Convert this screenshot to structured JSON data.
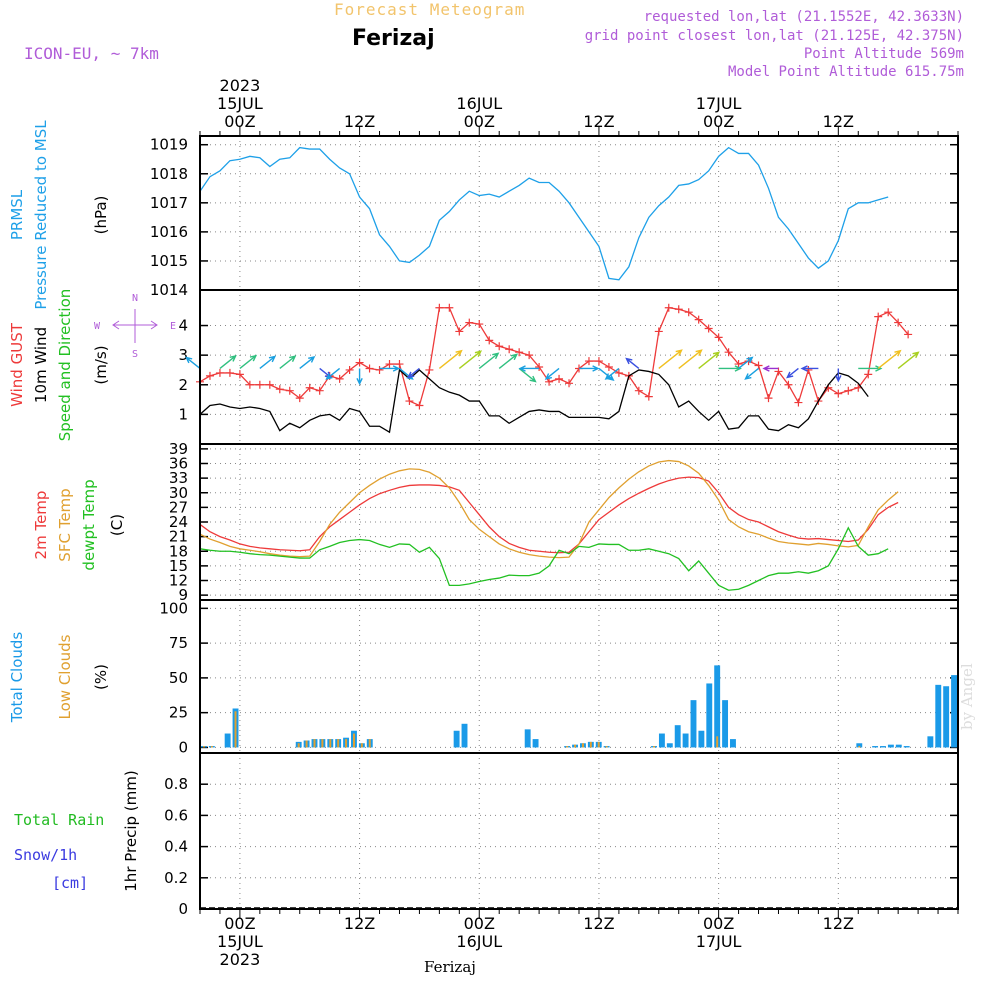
{
  "header": {
    "subtitle": "Forecast Meteogram",
    "location": "Ferizaj",
    "model": "ICON-EU, ~ 7km",
    "info_lines": [
      "requested lon,lat (21.1552E, 42.3633N)",
      "grid point closest lon,lat (21.125E, 42.375N)",
      "Point Altitude 569m",
      "Model Point Altitude 615.75m"
    ]
  },
  "footer": {
    "location": "Ferizaj",
    "watermark": "by Angel"
  },
  "colors": {
    "pressure": "#1ea0e8",
    "gust": "#ee3a3a",
    "wind10m": "#000000",
    "direction": "#22c022",
    "t2m": "#ee3a3a",
    "tsfc": "#e0a030",
    "dewpt": "#22c022",
    "total_clouds": "#1a9ae8",
    "low_clouds": "#e0a030",
    "rain": "#22bb22",
    "snow": "#3a3ae0",
    "axis_purple": "#b05cd8"
  },
  "time_axis": {
    "unit": "hours since 2023-07-14 20Z",
    "top_labels": [
      {
        "t": 4,
        "lines": [
          "2023",
          "15JUL",
          "00Z"
        ]
      },
      {
        "t": 16,
        "lines": [
          "12Z"
        ]
      },
      {
        "t": 28,
        "lines": [
          "16JUL",
          "00Z"
        ]
      },
      {
        "t": 40,
        "lines": [
          "12Z"
        ]
      },
      {
        "t": 52,
        "lines": [
          "17JUL",
          "00Z"
        ]
      },
      {
        "t": 64,
        "lines": [
          "12Z"
        ]
      }
    ],
    "bottom_labels": [
      {
        "t": 4,
        "lines": [
          "00Z",
          "15JUL",
          "2023"
        ]
      },
      {
        "t": 16,
        "lines": [
          "12Z"
        ]
      },
      {
        "t": 28,
        "lines": [
          "00Z",
          "16JUL"
        ]
      },
      {
        "t": 40,
        "lines": [
          "12Z"
        ]
      },
      {
        "t": 52,
        "lines": [
          "00Z",
          "17JUL"
        ]
      },
      {
        "t": 64,
        "lines": [
          "12Z"
        ]
      }
    ]
  },
  "chart_data": [
    {
      "id": "pressure",
      "type": "line",
      "title": "PRMSL Pressure Reduced to MSL",
      "label_lines": [
        {
          "text": "PRMSL",
          "color": "#1ea0e8"
        },
        {
          "text": "Pressure Reduced to MSL",
          "color": "#1ea0e8"
        }
      ],
      "ylabel": "(hPa)",
      "ylim": [
        1014,
        1019.3
      ],
      "yticks": [
        1014,
        1015,
        1016,
        1017,
        1018,
        1019
      ],
      "series": [
        {
          "name": "PRMSL",
          "color": "#1ea0e8",
          "values": [
            1017.4,
            1017.9,
            1018.1,
            1018.45,
            1018.5,
            1018.6,
            1018.55,
            1018.25,
            1018.5,
            1018.55,
            1018.9,
            1018.85,
            1018.85,
            1018.5,
            1018.2,
            1018.0,
            1017.2,
            1016.8,
            1015.9,
            1015.5,
            1015.0,
            1014.95,
            1015.2,
            1015.5,
            1016.4,
            1016.7,
            1017.1,
            1017.4,
            1017.25,
            1017.3,
            1017.2,
            1017.4,
            1017.6,
            1017.85,
            1017.7,
            1017.7,
            1017.4,
            1017.0,
            1016.5,
            1016.0,
            1015.5,
            1014.4,
            1014.35,
            1014.8,
            1015.8,
            1016.5,
            1016.9,
            1017.2,
            1017.6,
            1017.65,
            1017.8,
            1018.1,
            1018.6,
            1018.9,
            1018.7,
            1018.7,
            1018.3,
            1017.5,
            1016.5,
            1016.1,
            1015.6,
            1015.1,
            1014.75,
            1015.0,
            1015.7,
            1016.8,
            1017.0,
            1017.0,
            1017.1,
            1017.2
          ]
        }
      ]
    },
    {
      "id": "wind",
      "type": "line",
      "title": "Wind GUST / 10m Wind Speed and Direction",
      "label_lines": [
        {
          "text": "Wind GUST",
          "color": "#ee3a3a"
        },
        {
          "text": "10m Wind",
          "color": "#000000"
        },
        {
          "text": "Speed and Direction",
          "color": "#22c022"
        }
      ],
      "ylabel": "(m/s)",
      "ylim": [
        0,
        5.2
      ],
      "yticks": [
        1,
        2,
        3,
        4
      ],
      "compass": {
        "n": "N",
        "s": "S",
        "w": "W",
        "e": "E"
      },
      "series": [
        {
          "name": "Wind GUST",
          "color": "#ee3a3a",
          "marker": "+",
          "values": [
            2.1,
            2.3,
            2.4,
            2.4,
            2.35,
            2.0,
            2.0,
            2.0,
            1.85,
            1.8,
            1.55,
            1.9,
            1.8,
            2.3,
            2.2,
            2.5,
            2.75,
            2.55,
            2.5,
            2.7,
            2.7,
            1.45,
            1.3,
            2.5,
            4.6,
            4.6,
            3.8,
            4.1,
            4.05,
            3.5,
            3.3,
            3.2,
            3.1,
            3.0,
            2.6,
            2.1,
            2.2,
            2.05,
            2.55,
            2.8,
            2.8,
            2.6,
            2.4,
            2.3,
            1.8,
            1.6,
            3.8,
            4.6,
            4.55,
            4.45,
            4.2,
            3.9,
            3.6,
            3.1,
            2.7,
            2.8,
            2.65,
            1.55,
            2.45,
            2.0,
            1.4,
            2.5,
            1.45,
            1.9,
            1.7,
            1.8,
            1.9,
            2.35,
            4.3,
            4.45,
            4.1,
            3.7
          ]
        },
        {
          "name": "10m Wind",
          "color": "#000000",
          "values": [
            1.0,
            1.3,
            1.35,
            1.25,
            1.2,
            1.25,
            1.2,
            1.1,
            0.45,
            0.7,
            0.55,
            0.8,
            0.95,
            1.0,
            0.8,
            1.2,
            1.1,
            0.6,
            0.6,
            0.4,
            2.5,
            2.2,
            2.5,
            2.2,
            1.9,
            1.75,
            1.65,
            1.45,
            1.45,
            0.95,
            0.95,
            0.7,
            0.9,
            1.1,
            1.15,
            1.1,
            1.1,
            0.9,
            0.9,
            0.9,
            0.9,
            0.85,
            1.1,
            2.3,
            2.5,
            2.45,
            2.35,
            2.0,
            1.25,
            1.45,
            1.1,
            0.8,
            1.1,
            0.5,
            0.55,
            0.95,
            0.95,
            0.5,
            0.45,
            0.65,
            0.55,
            0.85,
            1.45,
            2.0,
            2.4,
            2.3,
            2.05,
            1.6
          ]
        }
      ],
      "arrows": [
        {
          "t": 0,
          "speed": 1.0,
          "dir": "NW"
        },
        {
          "t": 2,
          "speed": 1.3,
          "dir": "NE"
        },
        {
          "t": 4,
          "speed": 1.35,
          "dir": "NE"
        },
        {
          "t": 6,
          "speed": 1.2,
          "dir": "NE"
        },
        {
          "t": 8,
          "speed": 1.25,
          "dir": "NE"
        },
        {
          "t": 10,
          "speed": 1.1,
          "dir": "NE"
        },
        {
          "t": 12,
          "speed": 0.6,
          "dir": "SE"
        },
        {
          "t": 14,
          "speed": 0.9,
          "dir": "SW"
        },
        {
          "t": 16,
          "speed": 1.0,
          "dir": "S"
        },
        {
          "t": 18,
          "speed": 1.0,
          "dir": "E"
        },
        {
          "t": 20,
          "speed": 0.9,
          "dir": "SE"
        },
        {
          "t": 22,
          "speed": 0.6,
          "dir": "SW"
        },
        {
          "t": 24,
          "speed": 2.3,
          "dir": "NE"
        },
        {
          "t": 26,
          "speed": 2.2,
          "dir": "NE"
        },
        {
          "t": 28,
          "speed": 1.8,
          "dir": "NE"
        },
        {
          "t": 30,
          "speed": 1.6,
          "dir": "NE"
        },
        {
          "t": 32,
          "speed": 1.4,
          "dir": "SE"
        },
        {
          "t": 34,
          "speed": 1.0,
          "dir": "W"
        },
        {
          "t": 36,
          "speed": 0.9,
          "dir": "SW"
        },
        {
          "t": 38,
          "speed": 1.0,
          "dir": "E"
        },
        {
          "t": 40,
          "speed": 1.1,
          "dir": "SE"
        },
        {
          "t": 42,
          "speed": 0.9,
          "dir": "SW"
        },
        {
          "t": 44,
          "speed": 0.8,
          "dir": "NW"
        },
        {
          "t": 46,
          "speed": 2.4,
          "dir": "NE"
        },
        {
          "t": 48,
          "speed": 2.4,
          "dir": "NE"
        },
        {
          "t": 50,
          "speed": 2.0,
          "dir": "NE"
        },
        {
          "t": 52,
          "speed": 1.3,
          "dir": "E"
        },
        {
          "t": 54,
          "speed": 1.0,
          "dir": "NE"
        },
        {
          "t": 56,
          "speed": 0.9,
          "dir": "SW"
        },
        {
          "t": 58,
          "speed": 0.5,
          "dir": "W"
        },
        {
          "t": 60,
          "speed": 0.6,
          "dir": "SW"
        },
        {
          "t": 62,
          "speed": 0.7,
          "dir": "W"
        },
        {
          "t": 64,
          "speed": 0.6,
          "dir": "S"
        },
        {
          "t": 66,
          "speed": 1.4,
          "dir": "E"
        },
        {
          "t": 68,
          "speed": 2.3,
          "dir": "NE"
        },
        {
          "t": 70,
          "speed": 2.0,
          "dir": "NE"
        }
      ]
    },
    {
      "id": "temperature",
      "type": "line",
      "title": "2m Temp / SFC Temp / dewpt Temp",
      "label_lines": [
        {
          "text": "2m Temp",
          "color": "#ee3a3a"
        },
        {
          "text": "SFC Temp",
          "color": "#e0a030"
        },
        {
          "text": "dewpt Temp",
          "color": "#22c022"
        }
      ],
      "ylabel": "(C)",
      "ylim": [
        8,
        40
      ],
      "yticks": [
        9,
        12,
        15,
        18,
        21,
        24,
        27,
        30,
        33,
        36,
        39
      ],
      "series": [
        {
          "name": "2m Temp",
          "color": "#ee3a3a",
          "values": [
            23.5,
            22,
            21,
            20.3,
            19.5,
            19,
            18.7,
            18.5,
            18.3,
            18.2,
            18.1,
            18.3,
            21,
            23,
            24.5,
            26,
            27.5,
            28.8,
            29.8,
            30.5,
            31.1,
            31.5,
            31.6,
            31.6,
            31.5,
            31.2,
            30.5,
            28,
            25.5,
            23,
            21,
            19.6,
            18.8,
            18.2,
            18,
            17.8,
            17.7,
            17.8,
            19.5,
            22,
            24.5,
            26,
            27.5,
            28.8,
            29.9,
            30.9,
            31.8,
            32.5,
            33,
            33.2,
            33.1,
            32.4,
            30,
            27,
            25.5,
            24.5,
            24,
            23,
            22,
            21.3,
            20.7,
            20.5,
            20.6,
            20.4,
            20.2,
            20,
            20.3,
            22.5,
            25.5,
            27,
            28
          ]
        },
        {
          "name": "SFC Temp",
          "color": "#e0a030",
          "values": [
            21.5,
            20.5,
            19.8,
            19,
            18.5,
            18.2,
            17.9,
            17.5,
            17.2,
            17,
            16.9,
            17,
            20,
            23.5,
            26,
            28,
            30,
            31.5,
            32.8,
            33.8,
            34.5,
            34.9,
            34.8,
            34.2,
            33,
            31,
            28,
            24.5,
            22.5,
            21,
            19.5,
            18.5,
            17.8,
            17.3,
            17,
            16.8,
            16.7,
            16.8,
            19.5,
            24,
            26.5,
            29,
            31,
            32.8,
            34.3,
            35.5,
            36.3,
            36.6,
            36.4,
            35.5,
            34,
            31.5,
            28.5,
            24.5,
            23,
            22,
            21.5,
            20.7,
            20,
            19.7,
            19.5,
            19.3,
            19.6,
            19.4,
            19.1,
            18.9,
            19.2,
            23,
            26.5,
            28.5,
            30.2
          ]
        },
        {
          "name": "dewpt Temp",
          "color": "#22c022",
          "values": [
            18.5,
            18.2,
            18,
            18,
            17.8,
            17.5,
            17.3,
            17.2,
            17,
            16.8,
            16.6,
            16.6,
            18.3,
            19,
            19.8,
            20.2,
            20.4,
            20.2,
            19.4,
            18.8,
            19.5,
            19.4,
            17.8,
            18.8,
            16.5,
            11,
            11,
            11.3,
            11.8,
            12.2,
            12.5,
            13.1,
            13,
            13,
            13.5,
            15,
            18.2,
            17.5,
            19,
            18.8,
            19.5,
            19.4,
            19.4,
            18.2,
            18.2,
            18.5,
            18,
            17.5,
            16.5,
            14,
            16,
            13.5,
            11,
            10,
            10.2,
            11,
            12,
            13,
            13.5,
            13.5,
            13.8,
            13.5,
            14,
            15,
            18.5,
            22.8,
            19,
            17.2,
            17.5,
            18.5
          ]
        }
      ]
    },
    {
      "id": "clouds",
      "type": "bar",
      "title": "Total Clouds / Low Clouds",
      "label_lines": [
        {
          "text": "Total Clouds",
          "color": "#1a9ae8"
        },
        {
          "text": "Low Clouds",
          "color": "#e0a030"
        }
      ],
      "ylabel": "(%)",
      "ylim": [
        -4,
        106
      ],
      "yticks": [
        0,
        25,
        50,
        75,
        100
      ],
      "series": [
        {
          "name": "Total Clouds",
          "color": "#1a9ae8",
          "values": [
            1,
            1,
            0,
            10,
            28,
            0,
            0,
            0,
            0,
            0,
            0,
            0,
            4,
            5,
            6,
            6,
            6,
            6,
            7,
            12,
            3,
            6,
            0,
            0,
            0,
            0,
            0,
            0,
            0,
            0,
            0,
            0,
            12,
            17,
            0,
            0,
            0,
            0,
            0,
            0,
            0,
            13,
            6,
            0,
            0,
            0,
            1,
            2,
            3,
            4,
            4,
            1,
            0,
            0,
            0,
            0,
            0,
            1,
            10,
            3,
            16,
            10,
            34,
            12,
            46,
            59,
            34,
            6,
            0,
            0,
            0,
            0,
            0,
            0,
            0,
            0,
            0,
            0,
            0,
            0,
            0,
            0,
            0,
            3,
            0,
            1,
            1,
            2,
            2,
            1,
            0,
            0,
            8,
            45,
            44,
            52
          ]
        },
        {
          "name": "Low Clouds",
          "color": "#e0a030",
          "values": [
            1,
            1,
            0,
            0,
            26,
            0,
            0,
            0,
            0,
            0,
            0,
            0,
            3,
            5,
            6,
            6,
            6,
            6,
            6,
            10,
            3,
            6,
            0,
            0,
            0,
            0,
            0,
            0,
            0,
            0,
            0,
            0,
            0,
            0,
            0,
            0,
            0,
            0,
            0,
            0,
            0,
            0,
            0,
            0,
            0,
            0,
            1,
            2,
            3,
            4,
            4,
            1,
            0,
            0,
            0,
            0,
            0,
            1,
            0,
            0,
            0,
            0,
            0,
            0,
            0,
            8,
            0,
            0,
            0,
            0,
            0,
            0,
            0,
            0,
            0,
            0,
            0,
            0,
            0,
            0,
            0,
            0,
            0,
            1,
            0,
            0,
            0,
            0,
            0,
            0,
            0,
            0,
            0,
            0,
            0,
            0
          ]
        }
      ]
    },
    {
      "id": "precip",
      "type": "bar",
      "title": "Total Rain / Snow/1h",
      "label_lines": [
        {
          "text": "Total  Rain",
          "color": "#22bb22"
        },
        {
          "text": "Snow/1h",
          "color": "#3a3ae0"
        },
        {
          "text": "[cm]",
          "color": "#3a3ae0"
        }
      ],
      "ylabel": "1hr Precip (mm)",
      "ylim": [
        0,
        1.0
      ],
      "yticks": [
        0,
        0.2,
        0.4,
        0.6,
        0.8
      ],
      "ytick_labels": [
        "0",
        "0.2",
        "0.4",
        "0.6",
        "0.8"
      ],
      "series": [
        {
          "name": "Total Rain",
          "color": "#22bb22",
          "values": [
            0
          ]
        },
        {
          "name": "Snow/1h",
          "color": "#3a3ae0",
          "values": [
            0
          ]
        }
      ]
    }
  ]
}
